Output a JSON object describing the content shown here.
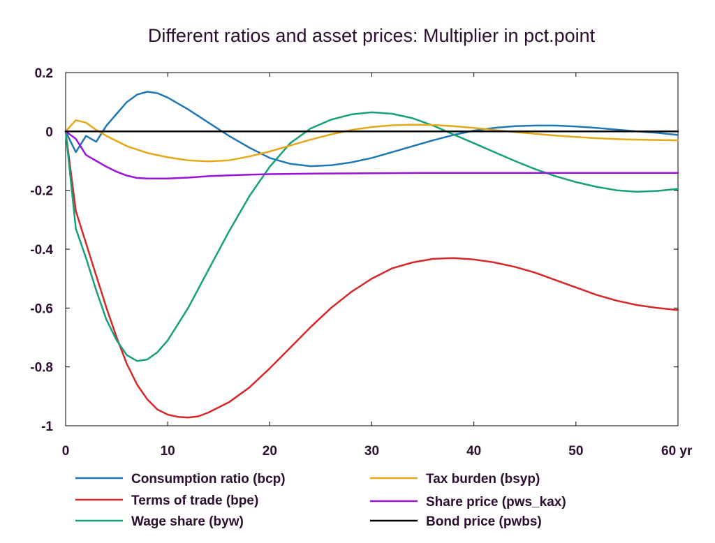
{
  "chart_data": {
    "type": "line",
    "title": "Different ratios and asset prices: Multiplier in pct.point",
    "xlabel": "",
    "ylabel": "",
    "x_unit_label": "yr",
    "xlim": [
      0,
      60
    ],
    "ylim": [
      -1,
      0.2
    ],
    "x_ticks": [
      0,
      10,
      20,
      30,
      40,
      50,
      60
    ],
    "y_ticks": [
      0.2,
      0,
      -0.2,
      -0.4,
      -0.6,
      -0.8,
      -1
    ],
    "y_tick_labels": [
      "0.2",
      "0",
      "-0.2",
      "-0.4",
      "-0.6",
      "-0.8",
      "-1"
    ],
    "x_tick_labels": [
      "0",
      "10",
      "20",
      "30",
      "40",
      "50",
      "60 yr"
    ],
    "grid": false,
    "legend_position": "bottom",
    "series": [
      {
        "name": "Consumption ratio (bcp)",
        "color": "#1f77b4",
        "x": [
          0,
          1,
          2,
          3,
          4,
          5,
          6,
          7,
          8,
          9,
          10,
          12,
          14,
          16,
          18,
          20,
          22,
          24,
          26,
          28,
          30,
          32,
          34,
          36,
          38,
          40,
          42,
          44,
          46,
          48,
          50,
          52,
          54,
          56,
          58,
          60
        ],
        "y": [
          0,
          -0.07,
          -0.015,
          -0.035,
          0.02,
          0.06,
          0.1,
          0.125,
          0.135,
          0.13,
          0.115,
          0.075,
          0.03,
          -0.015,
          -0.055,
          -0.09,
          -0.11,
          -0.118,
          -0.115,
          -0.105,
          -0.09,
          -0.07,
          -0.05,
          -0.03,
          -0.012,
          0.003,
          0.012,
          0.018,
          0.02,
          0.02,
          0.017,
          0.012,
          0.006,
          0.0,
          -0.005,
          -0.012
        ]
      },
      {
        "name": "Terms of trade (bpe)",
        "color": "#d62728",
        "x": [
          0,
          1,
          2,
          3,
          4,
          5,
          6,
          7,
          8,
          9,
          10,
          11,
          12,
          13,
          14,
          16,
          18,
          20,
          22,
          24,
          26,
          28,
          30,
          32,
          34,
          36,
          38,
          40,
          42,
          44,
          46,
          48,
          50,
          52,
          54,
          56,
          58,
          60
        ],
        "y": [
          0,
          -0.27,
          -0.38,
          -0.49,
          -0.6,
          -0.7,
          -0.79,
          -0.86,
          -0.91,
          -0.945,
          -0.962,
          -0.97,
          -0.972,
          -0.968,
          -0.955,
          -0.92,
          -0.87,
          -0.805,
          -0.735,
          -0.665,
          -0.6,
          -0.545,
          -0.5,
          -0.465,
          -0.445,
          -0.433,
          -0.43,
          -0.435,
          -0.445,
          -0.46,
          -0.48,
          -0.505,
          -0.53,
          -0.555,
          -0.575,
          -0.59,
          -0.6,
          -0.607
        ]
      },
      {
        "name": "Wage share (byw)",
        "color": "#16a07a",
        "x": [
          0,
          1,
          2,
          3,
          4,
          5,
          6,
          7,
          8,
          9,
          10,
          12,
          14,
          16,
          18,
          20,
          22,
          24,
          26,
          28,
          30,
          32,
          34,
          36,
          38,
          40,
          42,
          44,
          46,
          48,
          50,
          52,
          54,
          56,
          58,
          60
        ],
        "y": [
          0,
          -0.33,
          -0.43,
          -0.54,
          -0.64,
          -0.71,
          -0.76,
          -0.78,
          -0.775,
          -0.75,
          -0.71,
          -0.6,
          -0.47,
          -0.34,
          -0.22,
          -0.12,
          -0.04,
          0.01,
          0.04,
          0.058,
          0.065,
          0.06,
          0.045,
          0.02,
          -0.01,
          -0.04,
          -0.07,
          -0.1,
          -0.128,
          -0.152,
          -0.172,
          -0.188,
          -0.2,
          -0.205,
          -0.202,
          -0.195
        ]
      },
      {
        "name": "Tax burden (bsyp)",
        "color": "#e3a817",
        "x": [
          0,
          1,
          2,
          3,
          4,
          6,
          8,
          10,
          12,
          14,
          16,
          18,
          20,
          22,
          24,
          26,
          28,
          30,
          32,
          34,
          36,
          38,
          40,
          42,
          44,
          46,
          48,
          50,
          52,
          54,
          56,
          58,
          60
        ],
        "y": [
          0,
          0.038,
          0.03,
          0.005,
          -0.015,
          -0.05,
          -0.073,
          -0.088,
          -0.098,
          -0.102,
          -0.098,
          -0.085,
          -0.068,
          -0.048,
          -0.028,
          -0.01,
          0.005,
          0.015,
          0.021,
          0.023,
          0.022,
          0.018,
          0.012,
          0.005,
          -0.002,
          -0.008,
          -0.014,
          -0.019,
          -0.023,
          -0.026,
          -0.028,
          -0.029,
          -0.03
        ]
      },
      {
        "name": "Share price (pws_kax)",
        "color": "#9b13d9",
        "x": [
          0,
          1,
          2,
          3,
          4,
          5,
          6,
          7,
          8,
          10,
          12,
          14,
          16,
          18,
          20,
          25,
          30,
          35,
          40,
          45,
          50,
          55,
          60
        ],
        "y": [
          0,
          -0.025,
          -0.08,
          -0.1,
          -0.12,
          -0.137,
          -0.15,
          -0.158,
          -0.16,
          -0.16,
          -0.157,
          -0.152,
          -0.149,
          -0.147,
          -0.145,
          -0.143,
          -0.142,
          -0.141,
          -0.141,
          -0.141,
          -0.141,
          -0.141,
          -0.141
        ]
      },
      {
        "name": "Bond price (pwbs)",
        "color": "#000000",
        "x": [
          0,
          60
        ],
        "y": [
          0,
          0
        ]
      }
    ]
  }
}
